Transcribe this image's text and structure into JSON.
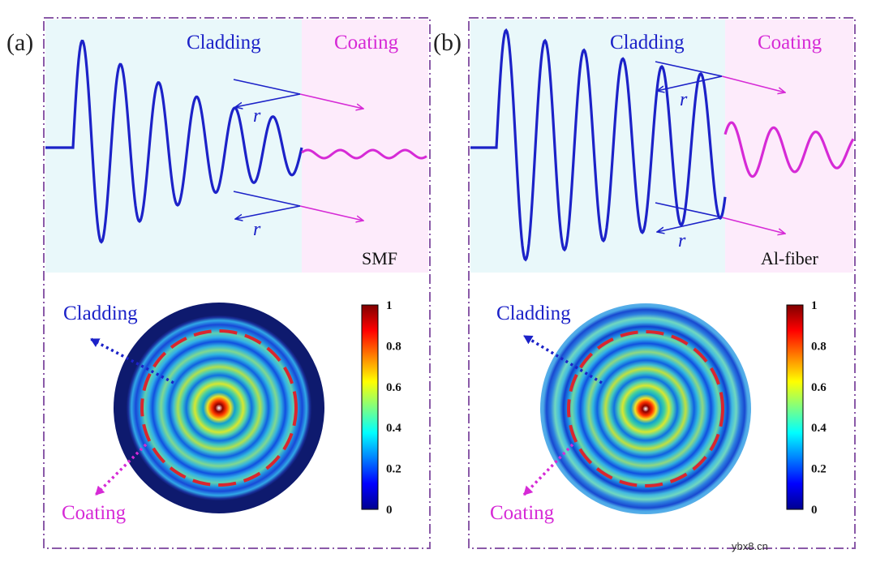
{
  "panels": [
    {
      "id": "a",
      "label": "(a)",
      "cladding_label": "Cladding",
      "coating_label": "Coating",
      "fiber_type": "SMF",
      "reflection_symbol": "r",
      "ring_cladding_label": "Cladding",
      "ring_coating_label": "Coating"
    },
    {
      "id": "b",
      "label": "(b)",
      "cladding_label": "Cladding",
      "coating_label": "Coating",
      "fiber_type": "Al-fiber",
      "reflection_symbol": "r",
      "ring_cladding_label": "Cladding",
      "ring_coating_label": "Coating"
    }
  ],
  "colorbar": {
    "ticks": [
      "1",
      "0.8",
      "0.6",
      "0.4",
      "0.2",
      "0"
    ],
    "range": [
      0,
      1
    ]
  },
  "colors": {
    "cladding": "#1c22c8",
    "coating": "#d62ad6",
    "cladding_bg": "#e9f8fa",
    "coating_bg": "#fdebfb",
    "frame": "#8a5aa8",
    "dashed_ring": "#d9262e"
  },
  "watermark": "ybx8.cn"
}
